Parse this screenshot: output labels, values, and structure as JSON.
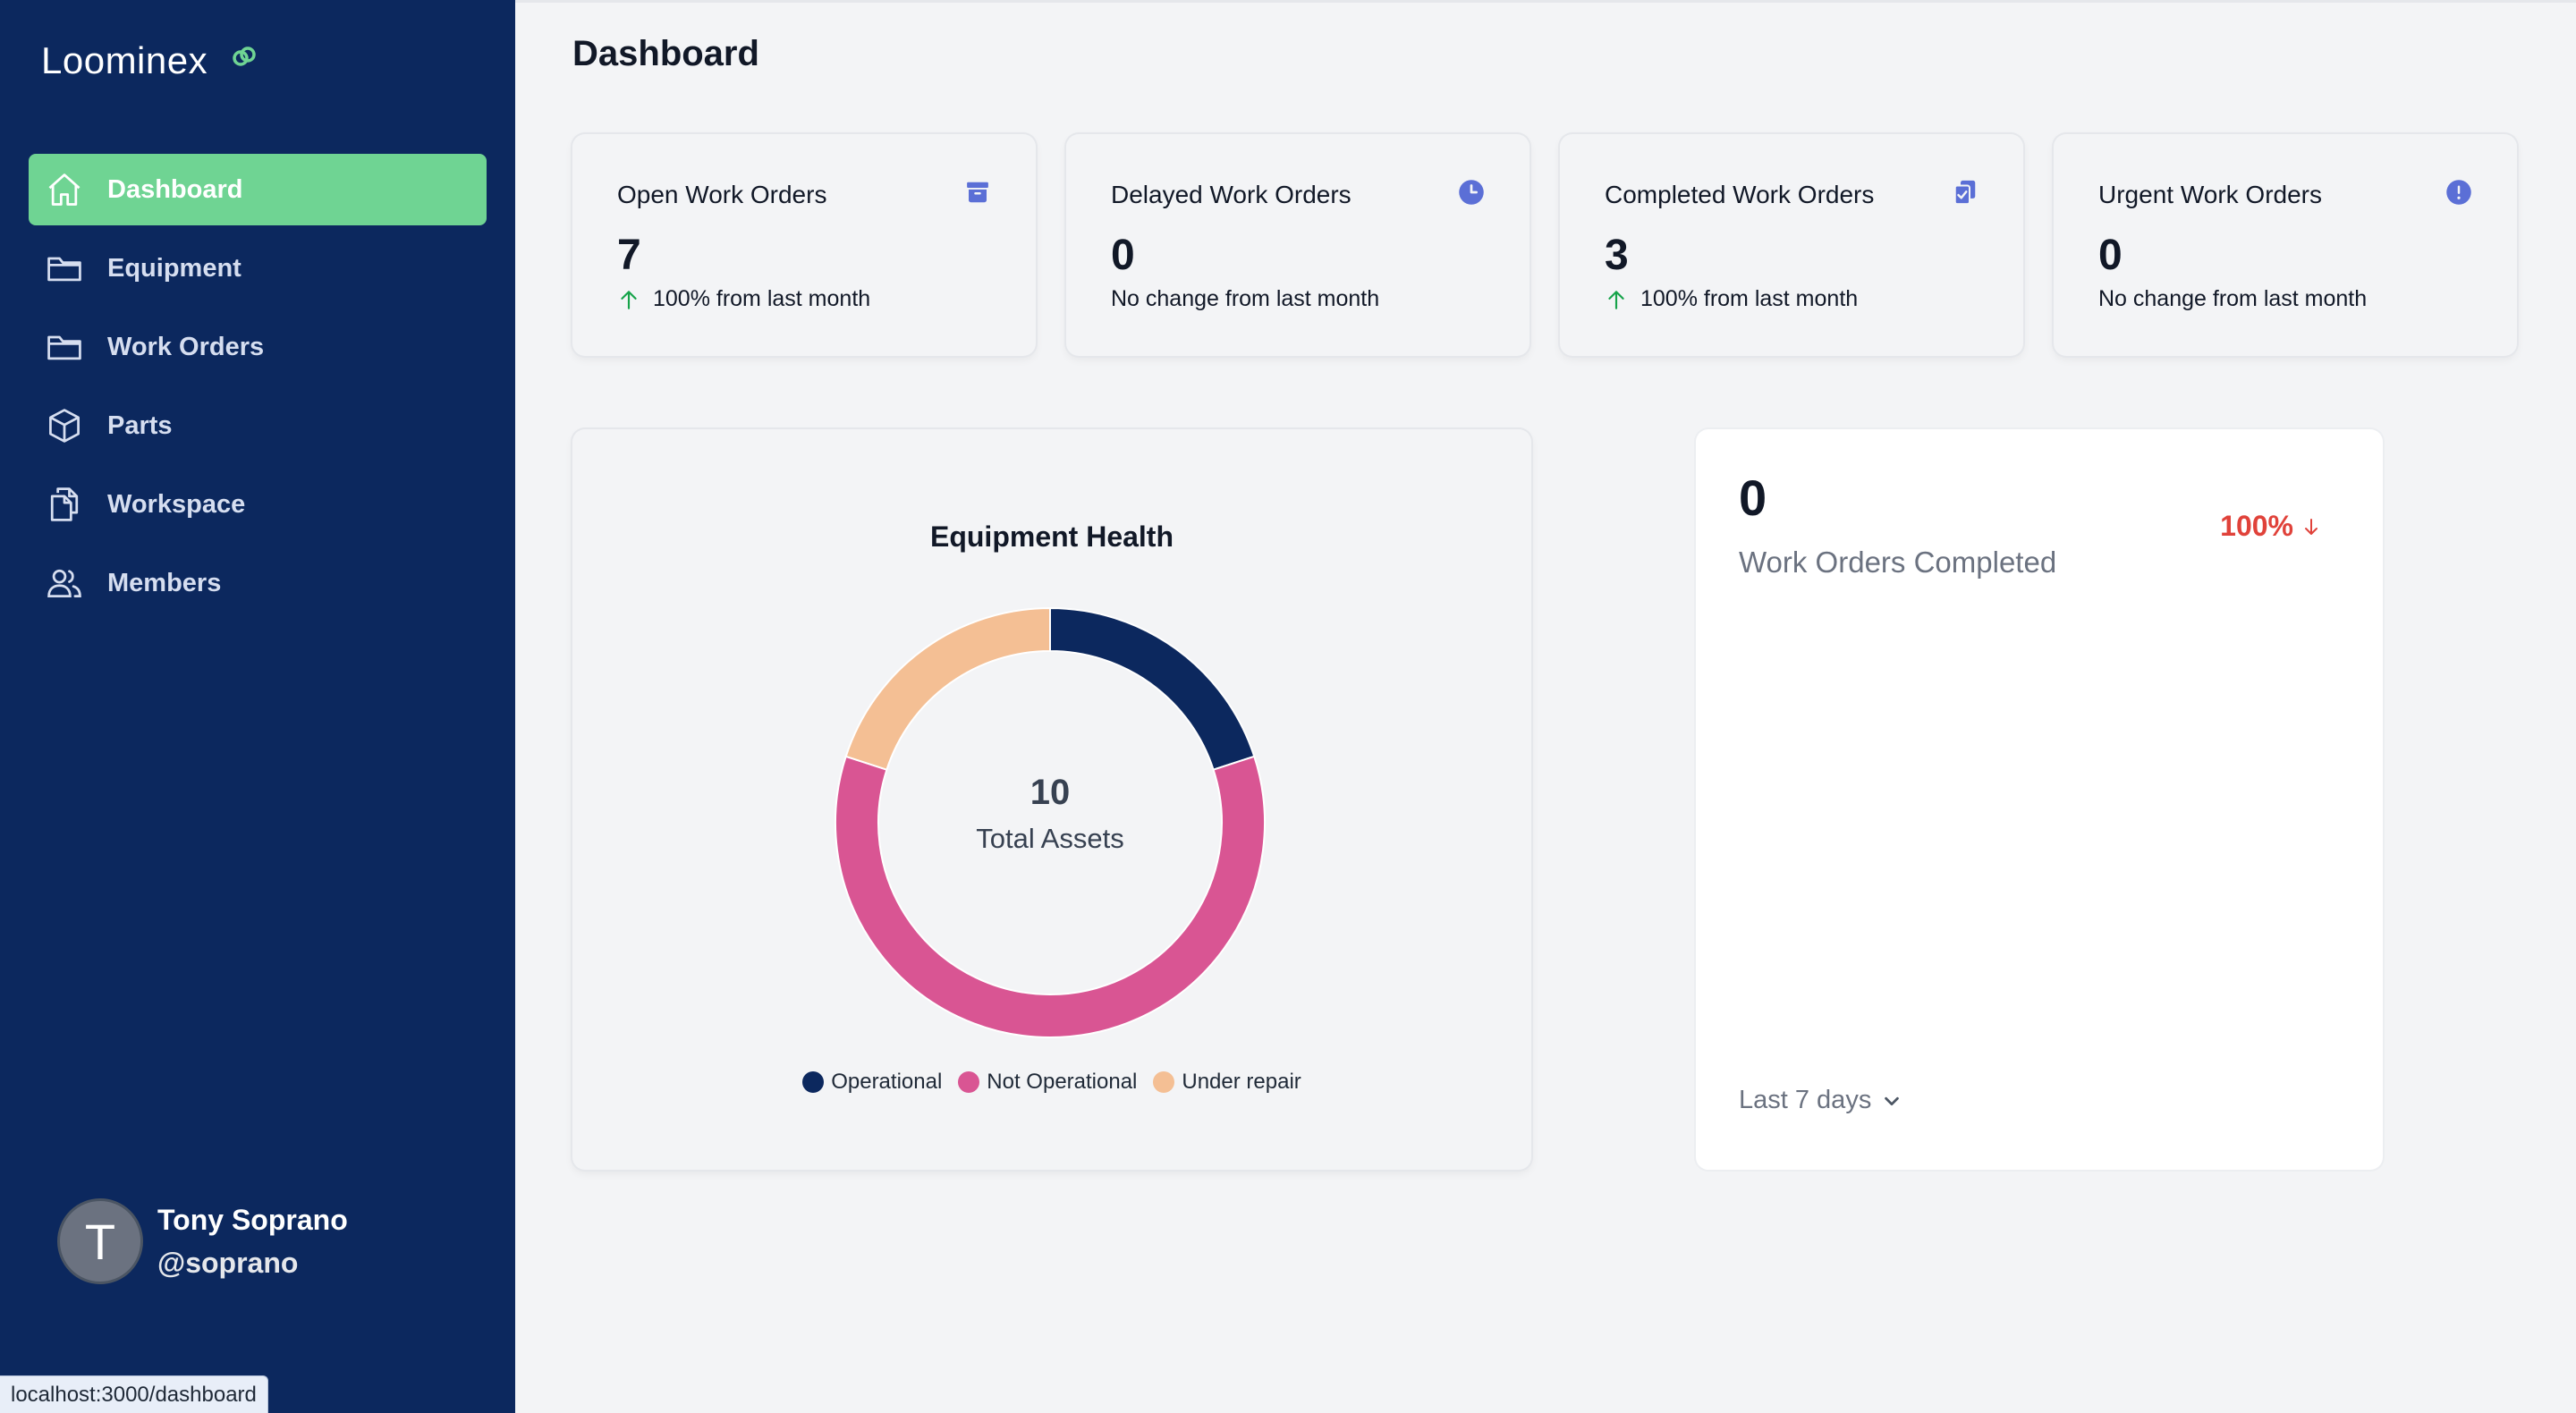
{
  "app": {
    "logo_text": "Loominex"
  },
  "sidebar": {
    "items": [
      {
        "label": "Dashboard",
        "icon": "home-icon",
        "active": true
      },
      {
        "label": "Equipment",
        "icon": "folder-icon"
      },
      {
        "label": "Work Orders",
        "icon": "folder-icon"
      },
      {
        "label": "Parts",
        "icon": "cube-icon"
      },
      {
        "label": "Workspace",
        "icon": "documents-icon"
      },
      {
        "label": "Members",
        "icon": "users-icon"
      }
    ],
    "user": {
      "initial": "T",
      "name": "Tony Soprano",
      "handle": "@soprano"
    }
  },
  "status_bar": {
    "url": "localhost:3000/dashboard"
  },
  "header": {
    "title": "Dashboard"
  },
  "stats": [
    {
      "title": "Open Work Orders",
      "value": "7",
      "change": "100% from last month",
      "trend": "up",
      "icon": "archive-icon"
    },
    {
      "title": "Delayed Work Orders",
      "value": "0",
      "change": "No change from last month",
      "trend": "none",
      "icon": "clock-icon"
    },
    {
      "title": "Completed Work Orders",
      "value": "3",
      "change": "100% from last month",
      "trend": "up",
      "icon": "clipboard-check-icon"
    },
    {
      "title": "Urgent Work Orders",
      "value": "0",
      "change": "No change from last month",
      "trend": "none",
      "icon": "alert-icon"
    }
  ],
  "colors": {
    "sidebar_bg": "#0c285e",
    "active_nav": "#6fd493",
    "operational": "#0c285e",
    "not_operational": "#d95593",
    "under_repair": "#f4bf94",
    "up_trend": "#16a34a",
    "down_trend": "#e0423a",
    "icon_accent": "#5b6fd6"
  },
  "equipment_health": {
    "title": "Equipment Health",
    "center_value": "10",
    "center_label": "Total Assets"
  },
  "chart_data": {
    "type": "pie",
    "title": "Equipment Health",
    "categories": [
      "Operational",
      "Not Operational",
      "Under repair"
    ],
    "values": [
      2,
      6,
      2
    ],
    "colors": [
      "#0c285e",
      "#d95593",
      "#f4bf94"
    ],
    "donut": true,
    "legend_position": "bottom"
  },
  "work_orders_card": {
    "value": "0",
    "label": "Work Orders Completed",
    "change": "100%",
    "trend": "down",
    "range": "Last 7 days"
  }
}
